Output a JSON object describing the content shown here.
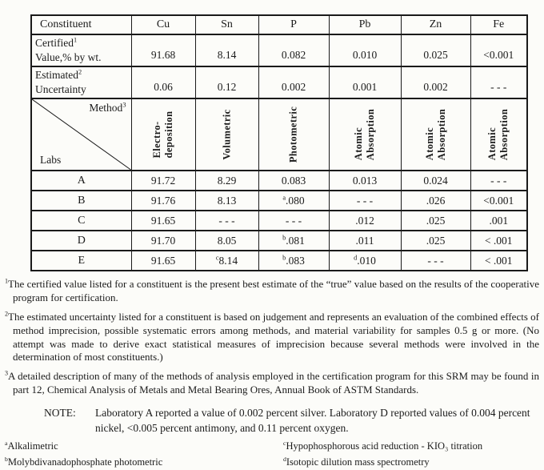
{
  "page": {
    "background": "#fcfcf9",
    "ink": "#1b1b1b"
  },
  "table": {
    "columns": [
      "Constituent",
      "Cu",
      "Sn",
      "P",
      "Pb",
      "Zn",
      "Fe"
    ],
    "certified_row": {
      "label_line1": "Certified",
      "label_sup": "1",
      "label_line2": "Value,% by wt.",
      "values": [
        "91.68",
        "8.14",
        "0.082",
        "0.010",
        "0.025",
        "<0.001"
      ]
    },
    "estimated_row": {
      "label_line1": "Estimated",
      "label_sup": "2",
      "label_line2": "Uncertainty",
      "values": [
        "0.06",
        "0.12",
        "0.002",
        "0.001",
        "0.002",
        "- - -"
      ]
    },
    "method_header": {
      "corner_top_label": "Method",
      "corner_top_sup": "3",
      "corner_bottom_label": "Labs",
      "methods": [
        "Electro-\ndeposition",
        "Volumetric",
        "Photometric",
        "Atomic\nAbsorption",
        "Atomic\nAbsorption",
        "Atomic\nAbsorption"
      ]
    },
    "lab_rows": [
      {
        "lab": "A",
        "values": [
          "91.72",
          "8.29",
          "0.083",
          "0.013",
          "0.024",
          "- - -"
        ]
      },
      {
        "lab": "B",
        "values": [
          "91.76",
          "8.13",
          {
            "sup": "a",
            "text": ".080"
          },
          "- - -",
          ".026",
          "<0.001"
        ]
      },
      {
        "lab": "C",
        "values": [
          "91.65",
          "- - -",
          "- - -",
          ".012",
          ".025",
          ".001"
        ]
      },
      {
        "lab": "D",
        "values": [
          "91.70",
          "8.05",
          {
            "sup": "b",
            "text": ".081"
          },
          ".011",
          ".025",
          "< .001"
        ]
      },
      {
        "lab": "E",
        "values": [
          "91.65",
          {
            "sup": "c",
            "text": "8.14"
          },
          {
            "sup": "b",
            "text": ".083"
          },
          {
            "sup": "d",
            "text": ".010"
          },
          "- - -",
          "< .001"
        ]
      }
    ]
  },
  "footnotes": [
    {
      "marker": "1",
      "text": "The certified value listed for a constituent is the present best estimate of the “true” value based on the results of the cooperative program for certification."
    },
    {
      "marker": "2",
      "text": "The estimated uncertainty listed for a constituent is based on judgement and represents an evaluation of the combined effects of method imprecision, possible systematic errors among methods, and material variability for samples 0.5 g or more. (No attempt was made to derive exact statistical measures of imprecision because several methods were involved in the determination of most constituents.)"
    },
    {
      "marker": "3",
      "text": "A detailed description of many of the methods of analysis employed in the certification program for this SRM may be found in part 12, Chemical Analysis of Metals and Metal Bearing Ores, Annual Book of ASTM Standards."
    }
  ],
  "note": {
    "label": "NOTE:",
    "text": "Laboratory A reported a value of 0.002 percent silver.  Laboratory D reported values of 0.004 percent nickel, <0.005 percent antimony, and 0.11 percent oxygen."
  },
  "letter_footnotes": [
    {
      "marker": "a",
      "text": "Alkalimetric"
    },
    {
      "marker": "b",
      "text": "Molybdivanadophosphate photometric"
    },
    {
      "marker": "c",
      "text": "Hypophosphorous acid reduction - KIO₃ titration"
    },
    {
      "marker": "d",
      "text": "Isotopic dilution mass spectrometry"
    }
  ]
}
